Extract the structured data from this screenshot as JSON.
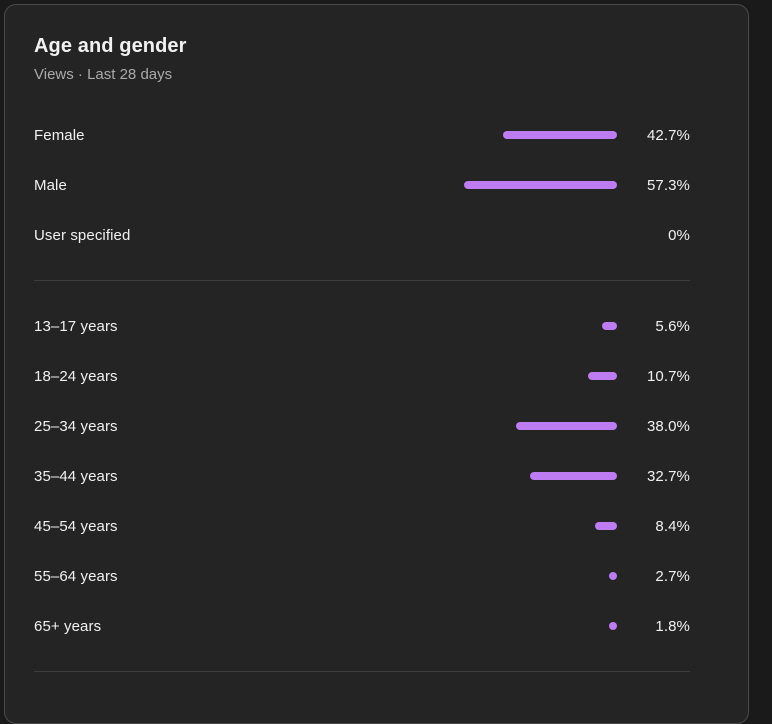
{
  "header": {
    "title": "Age and gender",
    "subtitle": "Views · Last 28 days"
  },
  "chart_data": {
    "type": "bar",
    "orientation": "horizontal",
    "title": "Age and gender",
    "subtitle": "Views · Last 28 days",
    "metric": "Views",
    "period": "Last 28 days",
    "value_unit": "%",
    "xlim": [
      0,
      100
    ],
    "bar_color": "#bd7cf1",
    "groups": [
      {
        "name": "gender",
        "rows": [
          {
            "label": "Female",
            "value": 42.7,
            "display": "42.7%"
          },
          {
            "label": "Male",
            "value": 57.3,
            "display": "57.3%"
          },
          {
            "label": "User specified",
            "value": 0,
            "display": "0%"
          }
        ]
      },
      {
        "name": "age",
        "rows": [
          {
            "label": "13–17 years",
            "value": 5.6,
            "display": "5.6%"
          },
          {
            "label": "18–24 years",
            "value": 10.7,
            "display": "10.7%"
          },
          {
            "label": "25–34 years",
            "value": 38.0,
            "display": "38.0%"
          },
          {
            "label": "35–44 years",
            "value": 32.7,
            "display": "32.7%"
          },
          {
            "label": "45–54 years",
            "value": 8.4,
            "display": "8.4%"
          },
          {
            "label": "55–64 years",
            "value": 2.7,
            "display": "2.7%"
          },
          {
            "label": "65+ years",
            "value": 1.8,
            "display": "1.8%"
          }
        ]
      }
    ]
  },
  "colors": {
    "card_background": "#242424",
    "page_background": "#1a1a1a",
    "bar": "#bd7cf1",
    "text_primary": "#f1f1f1",
    "text_secondary": "#aaaaaa",
    "divider": "#3d3d3d"
  }
}
